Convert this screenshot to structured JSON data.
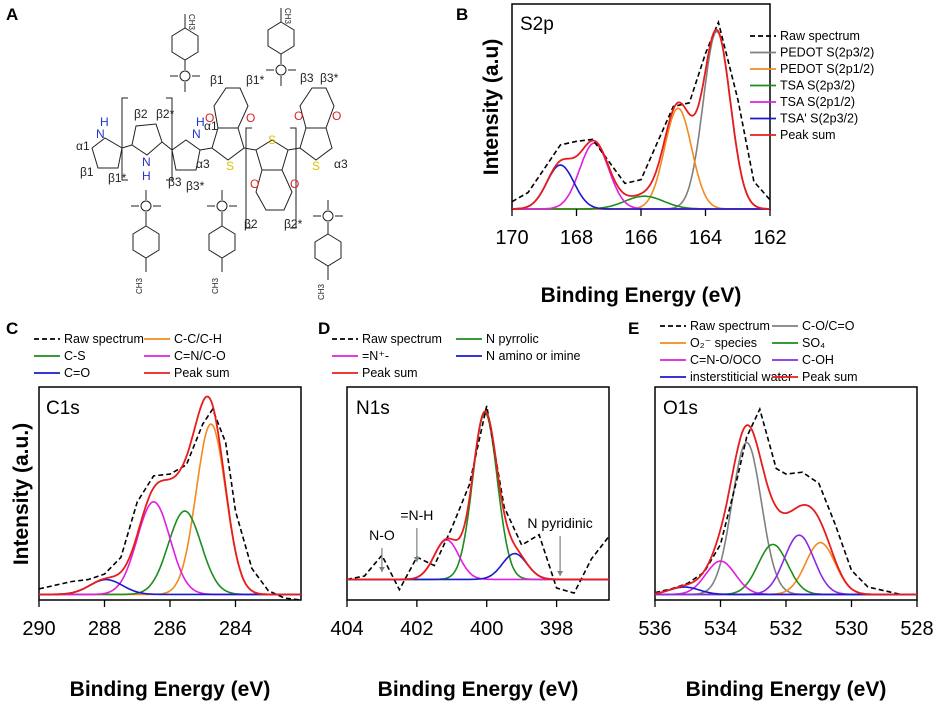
{
  "figure": {
    "panel_letters": [
      "A",
      "B",
      "C",
      "D",
      "E"
    ],
    "colors": {
      "raw": "#000000",
      "gray": "#808080",
      "orange": "#f28a1d",
      "green": "#1e8c1e",
      "magenta": "#e01ee0",
      "blue": "#1a1ad0",
      "red": "#e81c1c",
      "annot": "#808080"
    },
    "chem": {
      "pyrrole_atoms": [
        "H",
        "N",
        "N",
        "H",
        "H",
        "N"
      ],
      "pyrrole_positions": [
        "α1",
        "β1",
        "β1*",
        "β2",
        "β2*",
        "β3",
        "β3*",
        "α3"
      ],
      "edot_positions": [
        "β1",
        "β1*",
        "α1",
        "β2",
        "β2*",
        "β3",
        "β3*",
        "α3"
      ],
      "heteroatoms": [
        "O",
        "O",
        "S",
        "S",
        "O",
        "O",
        "S",
        "O",
        "O"
      ],
      "tosylate_methyl": "CH3"
    }
  },
  "chart_data": [
    {
      "panel": "B",
      "type": "line",
      "label": "S2p",
      "xlabel": "Binding Energy (eV)",
      "ylabel": "Intensity (a.u)",
      "xlim": [
        170,
        162
      ],
      "ylim": [
        0,
        1.12
      ],
      "xticks": [
        170,
        168,
        166,
        164,
        162
      ],
      "series": [
        {
          "name": "Raw spectrum",
          "color": "#000000",
          "style": "dash",
          "x": [
            170,
            169.5,
            169,
            168.5,
            168,
            167.5,
            167,
            166.5,
            166,
            165.5,
            165,
            164.5,
            164,
            163.6,
            163,
            162.5,
            162
          ],
          "y": [
            0.04,
            0.09,
            0.22,
            0.35,
            0.37,
            0.38,
            0.26,
            0.14,
            0.16,
            0.36,
            0.56,
            0.58,
            0.85,
            1.02,
            0.6,
            0.15,
            0.05
          ]
        },
        {
          "name": "PEDOT S(2p3/2)",
          "color": "#808080",
          "peak": {
            "center": 163.65,
            "height": 0.97,
            "sigma": 0.42
          }
        },
        {
          "name": "PEDOT S(2p1/2)",
          "color": "#f28a1d",
          "peak": {
            "center": 164.85,
            "height": 0.55,
            "sigma": 0.42
          }
        },
        {
          "name": "TSA S(2p3/2)",
          "color": "#1e8c1e",
          "peak": {
            "center": 165.9,
            "height": 0.07,
            "sigma": 0.6
          }
        },
        {
          "name": "TSA S(2p1/2)",
          "color": "#e01ee0",
          "peak": {
            "center": 167.45,
            "height": 0.36,
            "sigma": 0.45
          }
        },
        {
          "name": "TSA' S(2p3/2)",
          "color": "#1a1ad0",
          "peak": {
            "center": 168.5,
            "height": 0.24,
            "sigma": 0.42
          }
        },
        {
          "name": "Peak sum",
          "color": "#e81c1c",
          "sum": true
        }
      ]
    },
    {
      "panel": "C",
      "type": "line",
      "label": "C1s",
      "xlabel": "Binding Energy (eV)",
      "ylabel": "Intensity (a.u.)",
      "xlim": [
        290,
        282
      ],
      "ylim": [
        -0.03,
        1.12
      ],
      "xticks": [
        290,
        288,
        286,
        284
      ],
      "series": [
        {
          "name": "Raw spectrum",
          "color": "#000000",
          "style": "dash",
          "x": [
            290,
            289.5,
            289,
            288.5,
            288,
            287.5,
            287,
            286.5,
            286,
            285.5,
            285,
            284.7,
            284.3,
            284,
            283.5,
            283,
            282.5,
            282
          ],
          "y": [
            0.03,
            0.05,
            0.07,
            0.08,
            0.11,
            0.2,
            0.5,
            0.64,
            0.65,
            0.7,
            0.92,
            1.0,
            0.82,
            0.45,
            0.14,
            0.02,
            -0.02,
            -0.03
          ]
        },
        {
          "name": "C-C/C-H",
          "color": "#f28a1d",
          "peak": {
            "center": 284.75,
            "height": 0.92,
            "sigma": 0.45
          }
        },
        {
          "name": "C-S",
          "color": "#1e8c1e",
          "peak": {
            "center": 285.55,
            "height": 0.45,
            "sigma": 0.5
          }
        },
        {
          "name": "C=N/C-O",
          "color": "#e01ee0",
          "peak": {
            "center": 286.5,
            "height": 0.5,
            "sigma": 0.5
          }
        },
        {
          "name": "C=O",
          "color": "#1a1ad0",
          "peak": {
            "center": 287.95,
            "height": 0.08,
            "sigma": 0.5
          }
        },
        {
          "name": "Peak sum",
          "color": "#e81c1c",
          "sum": true
        }
      ]
    },
    {
      "panel": "D",
      "type": "line",
      "label": "N1s",
      "xlabel": "Binding Energy (eV)",
      "xlim": [
        404,
        396.5
      ],
      "ylim": [
        -0.12,
        1.12
      ],
      "xticks": [
        404,
        402,
        400,
        398
      ],
      "series": [
        {
          "name": "Raw spectrum",
          "color": "#000000",
          "style": "dash",
          "x": [
            404,
            403.5,
            403,
            402.5,
            402,
            401.5,
            401,
            400.5,
            400,
            399.5,
            399,
            398.5,
            398,
            397.5,
            397,
            396.5
          ],
          "y": [
            0.0,
            0.02,
            0.14,
            -0.06,
            0.13,
            0.08,
            0.3,
            0.55,
            1.01,
            0.42,
            0.2,
            0.26,
            -0.05,
            -0.08,
            0.12,
            0.25
          ]
        },
        {
          "name": "N pyrrolic",
          "color": "#1e8c1e",
          "peak": {
            "center": 400.05,
            "height": 0.97,
            "sigma": 0.35
          }
        },
        {
          "name": "=N⁺-",
          "color": "#e01ee0",
          "peak": {
            "center": 401.15,
            "height": 0.23,
            "sigma": 0.35
          }
        },
        {
          "name": "N amino or imine",
          "color": "#1a1ad0",
          "peak": {
            "center": 399.2,
            "height": 0.15,
            "sigma": 0.35
          }
        },
        {
          "name": "Peak sum",
          "color": "#e81c1c",
          "sum": true
        }
      ],
      "annotations": [
        {
          "text": "N-O",
          "x": 403.0
        },
        {
          "text": "=N-H",
          "x": 402.0
        },
        {
          "text": "N pyridinic",
          "x": 397.9
        }
      ]
    },
    {
      "panel": "E",
      "type": "line",
      "label": "O1s",
      "xlabel": "Binding Energy (eV)",
      "xlim": [
        536,
        528
      ],
      "ylim": [
        -0.03,
        1.12
      ],
      "xticks": [
        536,
        534,
        532,
        530,
        528
      ],
      "series": [
        {
          "name": "Raw spectrum",
          "color": "#000000",
          "style": "dash",
          "x": [
            536,
            535.5,
            535,
            534.5,
            534,
            533.5,
            533.2,
            532.8,
            532.3,
            532,
            531.5,
            531,
            530.5,
            530,
            529.5,
            529,
            528.5
          ],
          "y": [
            0.01,
            0.03,
            0.06,
            0.12,
            0.27,
            0.62,
            0.85,
            1.0,
            0.68,
            0.65,
            0.66,
            0.6,
            0.38,
            0.13,
            0.04,
            0.02,
            0.0
          ]
        },
        {
          "name": "C-O/C=O",
          "color": "#808080",
          "peak": {
            "center": 533.2,
            "height": 0.82,
            "sigma": 0.45
          }
        },
        {
          "name": "O₂⁻ species",
          "color": "#f28a1d",
          "peak": {
            "center": 530.95,
            "height": 0.28,
            "sigma": 0.45
          }
        },
        {
          "name": "SO₄",
          "color": "#1e8c1e",
          "peak": {
            "center": 532.4,
            "height": 0.27,
            "sigma": 0.45
          }
        },
        {
          "name": "C=N-O/OCO",
          "color": "#e01ee0",
          "peak": {
            "center": 534.0,
            "height": 0.18,
            "sigma": 0.45
          }
        },
        {
          "name": "C-OH",
          "color": "#8a2be2",
          "peak": {
            "center": 531.6,
            "height": 0.32,
            "sigma": 0.45
          }
        },
        {
          "name": "insterstiticial water",
          "color": "#1a1ad0",
          "peak": {
            "center": 535.1,
            "height": 0.04,
            "sigma": 0.45
          }
        },
        {
          "name": "Peak sum",
          "color": "#e81c1c",
          "sum": true
        }
      ]
    }
  ]
}
